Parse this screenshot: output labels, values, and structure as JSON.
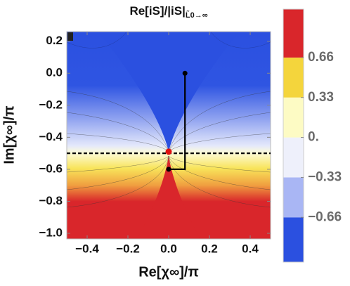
{
  "chart_data": {
    "type": "contour",
    "title": "Re[iS]/|iS|",
    "title_subscript": "L̃0→∞",
    "x_label": "Re[χ∞]/π",
    "y_label": "Im[χ∞]/π",
    "xlim": [
      -0.5,
      0.5
    ],
    "ylim": [
      -1.035,
      0.26
    ],
    "xticks": [
      {
        "value": -0.4,
        "label": "−0.4"
      },
      {
        "value": -0.2,
        "label": "−0.2"
      },
      {
        "value": 0,
        "label": "0.0"
      },
      0.2,
      0.4
    ],
    "yticks": [
      0.2,
      {
        "value": 0,
        "label": "0.0"
      },
      {
        "value": -0.2,
        "label": "−0.2"
      },
      {
        "value": -0.4,
        "label": "−0.4"
      },
      {
        "value": -0.6,
        "label": "−0.6"
      },
      {
        "value": -0.8,
        "label": "−0.8"
      },
      {
        "value": -1.0,
        "label": "−1.0"
      }
    ],
    "colorbar": {
      "lim": [
        -1.03,
        1.06
      ],
      "boundaries": [
        -0.66,
        -0.33,
        0,
        0.33,
        0.66
      ],
      "colors": [
        "#2b50e0",
        "#a9b6f4",
        "#eef0fb",
        "#fdfbc4",
        "#f4d53c",
        "#d9262b"
      ],
      "ticks": [
        0.66,
        0.33,
        {
          "value": 0,
          "label": "0."
        },
        {
          "value": -0.33,
          "label": "−0.33"
        },
        {
          "value": -0.66,
          "label": "−0.66"
        }
      ]
    },
    "dashed_line_y": -0.5,
    "path": {
      "x": [
        0.08,
        0.08,
        0
      ],
      "y": [
        0,
        -0.6,
        -0.6
      ]
    },
    "point": {
      "x": 0,
      "y": -0.49
    }
  }
}
